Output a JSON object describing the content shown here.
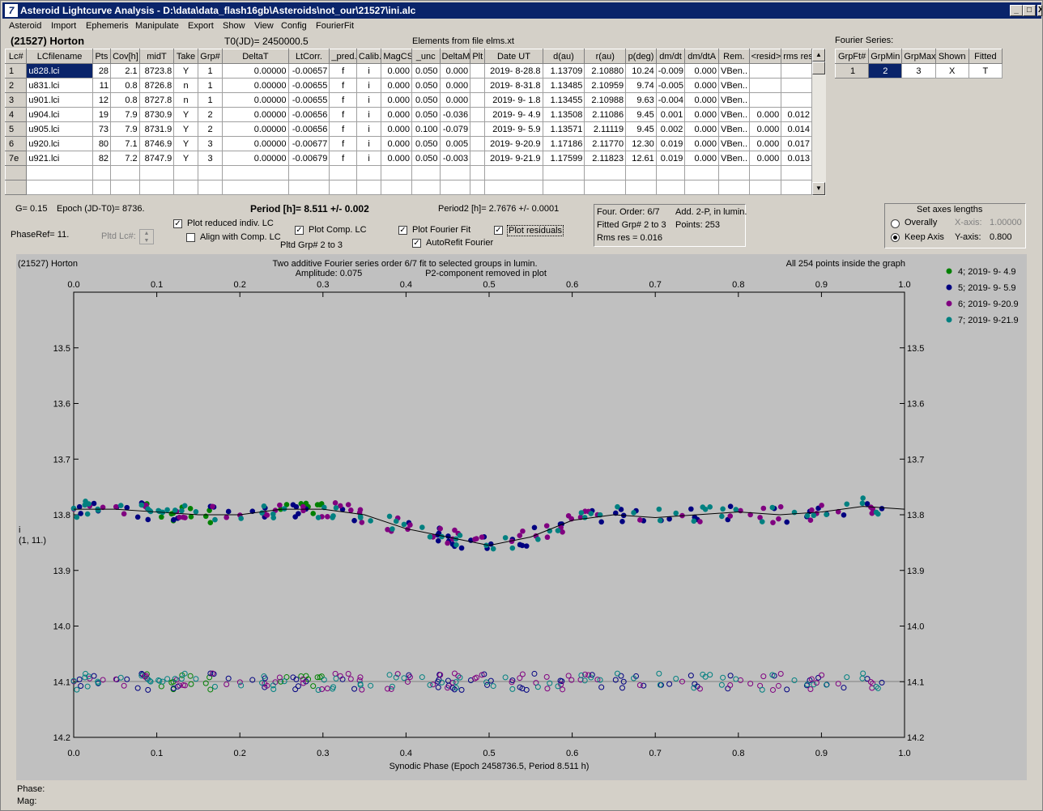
{
  "window": {
    "title": "Asteroid Lightcurve Analysis - D:\\data\\data_flash16gb\\Asteroids\\not_our\\21527\\ini.alc",
    "app_icon": "7",
    "min": "_",
    "max": "□",
    "close": "X"
  },
  "menu": [
    "Asteroid",
    "Import",
    "Ephemeris",
    "Manipulate",
    "Export",
    "Show",
    "View",
    "Config",
    "FourierFit"
  ],
  "header": {
    "asteroid": "(21527) Horton",
    "t0": "T0(JD)= 2450000.5",
    "elements": "Elements from file elms.xt"
  },
  "table": {
    "columns": [
      "Lc#",
      "LCfilename",
      "Pts",
      "Cov[h]",
      "midT",
      "Take",
      "Grp#",
      "DeltaT",
      "LtCorr.",
      "_pred.",
      "Calib.",
      "MagCS",
      "_unc",
      "DeltaM",
      "Plt",
      "Date UT",
      "d(au)",
      "r(au)",
      "p(deg)",
      "dm/dt",
      "dm/dtA",
      "Rem.",
      "<resid>",
      "rms res"
    ],
    "rows": [
      [
        "1",
        "u828.lci",
        "28",
        "2.1",
        "8723.8",
        "Y",
        "1",
        "0.00000",
        "-0.00657",
        "f",
        "i",
        "0.000",
        "0.050",
        "0.000",
        "",
        "2019- 8-28.8",
        "1.13709",
        "2.10880",
        "10.24",
        "-0.009",
        "0.000",
        "VBen..",
        "",
        ""
      ],
      [
        "2",
        "u831.lci",
        "11",
        "0.8",
        "8726.8",
        "n",
        "1",
        "0.00000",
        "-0.00655",
        "f",
        "i",
        "0.000",
        "0.050",
        "0.000",
        "",
        "2019- 8-31.8",
        "1.13485",
        "2.10959",
        "9.74",
        "-0.005",
        "0.000",
        "VBen..",
        "",
        ""
      ],
      [
        "3",
        "u901.lci",
        "12",
        "0.8",
        "8727.8",
        "n",
        "1",
        "0.00000",
        "-0.00655",
        "f",
        "i",
        "0.000",
        "0.050",
        "0.000",
        "",
        "2019- 9- 1.8",
        "1.13455",
        "2.10988",
        "9.63",
        "-0.004",
        "0.000",
        "VBen..",
        "",
        ""
      ],
      [
        "4",
        "u904.lci",
        "19",
        "7.9",
        "8730.9",
        "Y",
        "2",
        "0.00000",
        "-0.00656",
        "f",
        "i",
        "0.000",
        "0.050",
        "-0.036",
        "",
        "2019- 9- 4.9",
        "1.13508",
        "2.11086",
        "9.45",
        "0.001",
        "0.000",
        "VBen..",
        "0.000",
        "0.012"
      ],
      [
        "5",
        "u905.lci",
        "73",
        "7.9",
        "8731.9",
        "Y",
        "2",
        "0.00000",
        "-0.00656",
        "f",
        "i",
        "0.000",
        "0.100",
        "-0.079",
        "",
        "2019- 9- 5.9",
        "1.13571",
        "2.11119",
        "9.45",
        "0.002",
        "0.000",
        "VBen..",
        "0.000",
        "0.014"
      ],
      [
        "6",
        "u920.lci",
        "80",
        "7.1",
        "8746.9",
        "Y",
        "3",
        "0.00000",
        "-0.00677",
        "f",
        "i",
        "0.000",
        "0.050",
        "0.005",
        "",
        "2019- 9-20.9",
        "1.17186",
        "2.11770",
        "12.30",
        "0.019",
        "0.000",
        "VBen..",
        "0.000",
        "0.017"
      ],
      [
        "7e",
        "u921.lci",
        "82",
        "7.2",
        "8747.9",
        "Y",
        "3",
        "0.00000",
        "-0.00679",
        "f",
        "i",
        "0.000",
        "0.050",
        "-0.003",
        "",
        "2019- 9-21.9",
        "1.17599",
        "2.11823",
        "12.61",
        "0.019",
        "0.000",
        "VBen..",
        "0.000",
        "0.013"
      ]
    ]
  },
  "fourier_table": {
    "label": "Fourier Series:",
    "columns": [
      "GrpFt#",
      "GrpMin",
      "GrpMax",
      "Shown",
      "Fitted"
    ],
    "row": [
      "1",
      "2",
      "3",
      "X",
      "T"
    ]
  },
  "controls": {
    "g": "G= 0.15",
    "epoch": "Epoch (JD-T0)= 8736.",
    "period": "Period [h]= 8.511 +/- 0.002",
    "period2": "Period2 [h]= 2.7676 +/- 0.0001",
    "phaseref": "PhaseRef= 11.",
    "pltd_lc": "Pltd Lc#:",
    "plot_reduced": "Plot reduced indiv. LC",
    "align": "Align with Comp. LC",
    "plot_comp": "Plot Comp. LC",
    "pltd_grp": "Pltd Grp#  2   to   3",
    "plot_fourier": "Plot Fourier Fit",
    "autorefit": "AutoRefit Fourier",
    "plot_resid": "Plot residuals",
    "check": "✓"
  },
  "fourinfo": {
    "order": "Four. Order:  6/7",
    "add": "Add. 2-P, in lumin.",
    "fitted": "Fitted Grp# 2 to 3",
    "points": "Points: 253",
    "rms": "Rms res     = 0.016"
  },
  "axes": {
    "title": "Set axes lengths",
    "overally": "Overally",
    "keep": "Keep Axis",
    "xaxis": "X-axis:",
    "xval": "1.00000",
    "yaxis": "Y-axis:",
    "yval": "0.800"
  },
  "plot": {
    "name": "(21527) Horton",
    "line1": "Two additive Fourier series order 6/7 fit to selected groups in lumin.",
    "line2": "Amplitude: 0.075",
    "line3": "P2-component removed in plot",
    "inside": "All 254 points inside the graph",
    "ylabel1": "i",
    "ylabel2": "(1, 11.)",
    "xlabel": "Synodic Phase (Epoch 2458736.5, Period 8.511 h)",
    "xticks": [
      "0.0",
      "0.1",
      "0.2",
      "0.3",
      "0.4",
      "0.5",
      "0.6",
      "0.7",
      "0.8",
      "0.9",
      "1.0"
    ],
    "yticks": [
      "13.5",
      "13.6",
      "13.7",
      "13.8",
      "13.9",
      "14.0",
      "14.1",
      "14.2"
    ]
  },
  "chart_data": {
    "type": "scatter",
    "xlabel": "Synodic Phase (Epoch 2458736.5, Period 8.511 h)",
    "ylabel": "i",
    "xlim": [
      0,
      1
    ],
    "ylim": [
      14.2,
      13.4
    ],
    "series": [
      {
        "name": "4; 2019- 9- 4.9",
        "color": "#008000"
      },
      {
        "name": "5; 2019- 9- 5.9",
        "color": "#000080"
      },
      {
        "name": "6; 2019- 9-20.9",
        "color": "#800080"
      },
      {
        "name": "7; 2019- 9-21.9",
        "color": "#008080"
      }
    ],
    "fourier_fit": [
      [
        0,
        13.79
      ],
      [
        0.05,
        13.79
      ],
      [
        0.1,
        13.795
      ],
      [
        0.15,
        13.8
      ],
      [
        0.2,
        13.8
      ],
      [
        0.25,
        13.79
      ],
      [
        0.3,
        13.79
      ],
      [
        0.35,
        13.8
      ],
      [
        0.4,
        13.825
      ],
      [
        0.45,
        13.84
      ],
      [
        0.5,
        13.855
      ],
      [
        0.55,
        13.84
      ],
      [
        0.6,
        13.81
      ],
      [
        0.65,
        13.8
      ],
      [
        0.7,
        13.805
      ],
      [
        0.75,
        13.8
      ],
      [
        0.8,
        13.795
      ],
      [
        0.85,
        13.8
      ],
      [
        0.9,
        13.795
      ],
      [
        0.95,
        13.785
      ],
      [
        1.0,
        13.79
      ]
    ],
    "residual_level": 14.1
  },
  "status": {
    "phase": "Phase:",
    "mag": "Mag:"
  }
}
